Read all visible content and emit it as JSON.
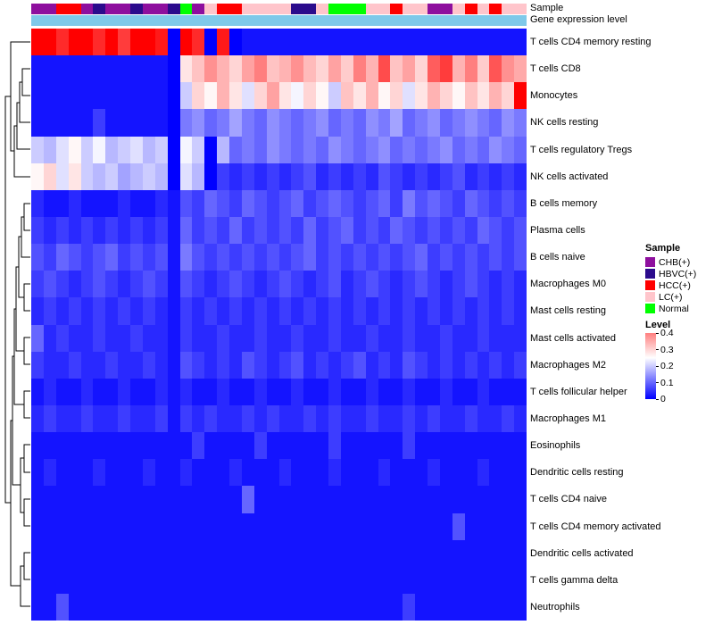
{
  "annotations": {
    "sample_label": "Sample",
    "gene_label": "Gene expression level",
    "gene_bar_color": "#7FC9E9"
  },
  "legend": {
    "sample": {
      "title": "Sample",
      "entries": [
        {
          "label": "CHB(+)",
          "color": "#8E0F9E"
        },
        {
          "label": "HBVC(+)",
          "color": "#2B0B8C"
        },
        {
          "label": "HCC(+)",
          "color": "#FF0000"
        },
        {
          "label": "LC(+)",
          "color": "#FFC5CB"
        },
        {
          "label": "Normal",
          "color": "#00FF00"
        }
      ]
    },
    "level": {
      "title": "Level",
      "ticks": [
        "0.4",
        "0.3",
        "0.2",
        "0.1",
        "0"
      ],
      "tick_values": [
        0.4,
        0.3,
        0.2,
        0.1,
        0
      ]
    }
  },
  "chart_data": {
    "type": "heatmap",
    "title": "",
    "xlabel": "",
    "ylabel": "",
    "n_cols": 40,
    "color_scale": {
      "min": 0,
      "max": 0.4,
      "low": "#0000FF",
      "mid": "#FFFFFF",
      "high": "#FF0000",
      "mid_at": 0.25
    },
    "rows": [
      "T cells CD4 memory resting",
      "T cells CD8",
      "Monocytes",
      "NK cells resting",
      "T cells regulatory Tregs",
      "NK cells activated",
      "B cells memory",
      "Plasma cells",
      "B cells naive",
      "Macrophages M0",
      "Mast cells resting",
      "Mast cells activated",
      "Macrophages M2",
      "T cells follicular helper",
      "Macrophages M1",
      "Eosinophils",
      "Dendritic cells resting",
      "T cells CD4 naive",
      "T cells CD4 memory activated",
      "Dendritic cells activated",
      "T cells gamma delta",
      "Neutrophils"
    ],
    "col_annotations": {
      "sample": [
        "CHB(+)",
        "CHB(+)",
        "HCC(+)",
        "HCC(+)",
        "CHB(+)",
        "HBVC(+)",
        "CHB(+)",
        "CHB(+)",
        "HBVC(+)",
        "CHB(+)",
        "CHB(+)",
        "HBVC(+)",
        "Normal",
        "CHB(+)",
        "LC(+)",
        "HCC(+)",
        "HCC(+)",
        "LC(+)",
        "LC(+)",
        "LC(+)",
        "LC(+)",
        "HBVC(+)",
        "HBVC(+)",
        "LC(+)",
        "Normal",
        "Normal",
        "Normal",
        "LC(+)",
        "LC(+)",
        "HCC(+)",
        "LC(+)",
        "LC(+)",
        "CHB(+)",
        "CHB(+)",
        "LC(+)",
        "HCC(+)",
        "LC(+)",
        "HCC(+)",
        "LC(+)",
        "LC(+)"
      ]
    },
    "values": [
      [
        0.55,
        0.6,
        0.5,
        0.58,
        0.62,
        0.5,
        0.55,
        0.48,
        0.6,
        0.55,
        0.52,
        0,
        0.55,
        0.5,
        0,
        0.52,
        0,
        0.02,
        0.02,
        0.02,
        0.02,
        0.02,
        0.02,
        0.02,
        0.02,
        0.02,
        0.02,
        0.02,
        0.02,
        0.02,
        0.02,
        0.02,
        0.02,
        0.02,
        0.02,
        0.02,
        0.02,
        0.02,
        0.02,
        0.02
      ],
      [
        0.02,
        0.02,
        0.02,
        0.02,
        0.02,
        0.02,
        0.02,
        0.02,
        0.02,
        0.02,
        0.02,
        0,
        0.28,
        0.32,
        0.38,
        0.34,
        0.3,
        0.36,
        0.4,
        0.32,
        0.34,
        0.38,
        0.33,
        0.3,
        0.36,
        0.31,
        0.4,
        0.34,
        0.46,
        0.32,
        0.36,
        0.3,
        0.44,
        0.48,
        0.34,
        0.4,
        0.31,
        0.45,
        0.38,
        0.35
      ],
      [
        0.02,
        0.02,
        0.02,
        0.02,
        0.02,
        0.02,
        0.02,
        0.02,
        0.02,
        0.02,
        0.02,
        0,
        0.2,
        0.3,
        0.26,
        0.34,
        0.28,
        0.22,
        0.3,
        0.36,
        0.28,
        0.24,
        0.3,
        0.26,
        0.2,
        0.32,
        0.28,
        0.34,
        0.26,
        0.3,
        0.22,
        0.28,
        0.34,
        0.3,
        0.26,
        0.32,
        0.28,
        0.34,
        0.3,
        0.55
      ],
      [
        0.02,
        0.02,
        0.02,
        0.02,
        0.02,
        0.06,
        0.02,
        0.02,
        0.02,
        0.02,
        0.02,
        0,
        0.12,
        0.14,
        0.1,
        0.12,
        0.16,
        0.12,
        0.1,
        0.14,
        0.12,
        0.1,
        0.12,
        0.14,
        0.1,
        0.12,
        0.1,
        0.14,
        0.12,
        0.16,
        0.1,
        0.12,
        0.14,
        0.1,
        0.12,
        0.14,
        0.12,
        0.1,
        0.14,
        0.12
      ],
      [
        0.2,
        0.18,
        0.22,
        0.26,
        0.2,
        0.24,
        0.18,
        0.2,
        0.22,
        0.18,
        0.2,
        0,
        0.24,
        0.2,
        0,
        0.18,
        0.1,
        0.12,
        0.1,
        0.14,
        0.12,
        0.1,
        0.12,
        0.1,
        0.14,
        0.12,
        0.1,
        0.12,
        0.14,
        0.1,
        0.12,
        0.1,
        0.12,
        0.14,
        0.1,
        0.12,
        0.1,
        0.14,
        0.12,
        0.1
      ],
      [
        0.26,
        0.3,
        0.22,
        0.28,
        0.2,
        0.18,
        0.2,
        0.16,
        0.18,
        0.2,
        0.18,
        0,
        0.22,
        0.18,
        0,
        0.06,
        0.04,
        0.06,
        0.04,
        0.06,
        0.04,
        0.06,
        0.08,
        0.04,
        0.06,
        0.04,
        0.06,
        0.04,
        0.08,
        0.06,
        0.04,
        0.06,
        0.04,
        0.06,
        0.08,
        0.04,
        0.06,
        0.04,
        0.06,
        0.04
      ],
      [
        0.04,
        0.02,
        0.02,
        0.04,
        0.02,
        0.02,
        0.02,
        0.04,
        0.02,
        0.02,
        0.04,
        0.02,
        0.08,
        0.06,
        0.1,
        0.08,
        0.06,
        0.1,
        0.08,
        0.06,
        0.08,
        0.1,
        0.06,
        0.08,
        0.1,
        0.08,
        0.06,
        0.08,
        0.1,
        0.06,
        0.12,
        0.08,
        0.1,
        0.08,
        0.06,
        0.1,
        0.08,
        0.06,
        0.08,
        0.06
      ],
      [
        0.06,
        0.04,
        0.06,
        0.04,
        0.06,
        0.04,
        0.06,
        0.04,
        0.06,
        0.04,
        0.06,
        0.02,
        0.1,
        0.06,
        0.08,
        0.06,
        0.1,
        0.06,
        0.08,
        0.06,
        0.08,
        0.06,
        0.1,
        0.06,
        0.08,
        0.1,
        0.06,
        0.08,
        0.06,
        0.1,
        0.08,
        0.06,
        0.08,
        0.06,
        0.08,
        0.06,
        0.1,
        0.08,
        0.06,
        0.08
      ],
      [
        0.08,
        0.06,
        0.1,
        0.08,
        0.06,
        0.08,
        0.1,
        0.06,
        0.08,
        0.06,
        0.08,
        0.02,
        0.12,
        0.08,
        0.06,
        0.08,
        0.06,
        0.08,
        0.06,
        0.08,
        0.06,
        0.08,
        0.1,
        0.06,
        0.08,
        0.06,
        0.08,
        0.06,
        0.08,
        0.06,
        0.08,
        0.1,
        0.06,
        0.08,
        0.06,
        0.08,
        0.06,
        0.08,
        0.06,
        0.08
      ],
      [
        0.06,
        0.08,
        0.06,
        0.04,
        0.06,
        0.08,
        0.06,
        0.04,
        0.06,
        0.08,
        0.06,
        0.02,
        0.08,
        0.06,
        0.04,
        0.06,
        0.08,
        0.06,
        0.04,
        0.06,
        0.08,
        0.06,
        0.04,
        0.06,
        0.08,
        0.04,
        0.06,
        0.08,
        0.06,
        0.04,
        0.06,
        0.08,
        0.06,
        0.04,
        0.06,
        0.08,
        0.06,
        0.04,
        0.06,
        0.04
      ],
      [
        0.04,
        0.06,
        0.04,
        0.06,
        0.04,
        0.06,
        0.04,
        0.06,
        0.04,
        0.06,
        0.04,
        0.02,
        0.06,
        0.04,
        0.06,
        0.04,
        0.06,
        0.04,
        0.06,
        0.04,
        0.06,
        0.04,
        0.06,
        0.04,
        0.06,
        0.04,
        0.06,
        0.04,
        0.06,
        0.04,
        0.06,
        0.04,
        0.06,
        0.04,
        0.06,
        0.04,
        0.06,
        0.04,
        0.06,
        0.04
      ],
      [
        0.1,
        0.04,
        0.06,
        0.04,
        0.04,
        0.06,
        0.04,
        0.04,
        0.06,
        0.04,
        0.04,
        0.02,
        0.06,
        0.04,
        0.04,
        0.06,
        0.04,
        0.04,
        0.06,
        0.04,
        0.04,
        0.06,
        0.04,
        0.04,
        0.06,
        0.04,
        0.04,
        0.06,
        0.04,
        0.04,
        0.06,
        0.04,
        0.04,
        0.06,
        0.04,
        0.04,
        0.06,
        0.04,
        0.04,
        0.04
      ],
      [
        0.06,
        0.04,
        0.04,
        0.06,
        0.04,
        0.04,
        0.06,
        0.04,
        0.04,
        0.06,
        0.04,
        0.02,
        0.08,
        0.06,
        0.04,
        0.06,
        0.04,
        0.08,
        0.06,
        0.04,
        0.06,
        0.08,
        0.04,
        0.06,
        0.04,
        0.06,
        0.08,
        0.04,
        0.06,
        0.04,
        0.08,
        0.06,
        0.04,
        0.06,
        0.04,
        0.06,
        0.04,
        0.06,
        0.04,
        0.06
      ],
      [
        0.02,
        0.04,
        0.02,
        0.02,
        0.04,
        0.02,
        0.02,
        0.04,
        0.02,
        0.02,
        0.04,
        0.02,
        0.04,
        0.02,
        0.02,
        0.04,
        0.02,
        0.02,
        0.04,
        0.02,
        0.02,
        0.04,
        0.02,
        0.02,
        0.04,
        0.02,
        0.02,
        0.04,
        0.02,
        0.02,
        0.04,
        0.02,
        0.02,
        0.04,
        0.02,
        0.02,
        0.04,
        0.02,
        0.02,
        0.02
      ],
      [
        0.04,
        0.06,
        0.04,
        0.04,
        0.06,
        0.04,
        0.04,
        0.06,
        0.04,
        0.04,
        0.06,
        0.02,
        0.06,
        0.04,
        0.06,
        0.04,
        0.04,
        0.06,
        0.04,
        0.06,
        0.04,
        0.04,
        0.06,
        0.04,
        0.06,
        0.04,
        0.04,
        0.06,
        0.04,
        0.04,
        0.06,
        0.04,
        0.06,
        0.04,
        0.04,
        0.06,
        0.04,
        0.04,
        0.06,
        0.04
      ],
      [
        0.02,
        0.02,
        0.02,
        0.02,
        0.02,
        0.02,
        0.02,
        0.02,
        0.02,
        0.02,
        0.02,
        0.02,
        0.02,
        0.06,
        0.02,
        0.02,
        0.02,
        0.02,
        0.06,
        0.02,
        0.02,
        0.02,
        0.02,
        0.02,
        0.06,
        0.02,
        0.02,
        0.02,
        0.02,
        0.02,
        0.06,
        0.02,
        0.02,
        0.02,
        0.02,
        0.02,
        0.02,
        0.02,
        0.02,
        0.02
      ],
      [
        0.02,
        0.04,
        0.02,
        0.02,
        0.02,
        0.04,
        0.02,
        0.02,
        0.02,
        0.04,
        0.02,
        0.02,
        0.04,
        0.02,
        0.02,
        0.02,
        0.04,
        0.02,
        0.02,
        0.02,
        0.04,
        0.02,
        0.02,
        0.02,
        0.04,
        0.02,
        0.02,
        0.02,
        0.04,
        0.02,
        0.02,
        0.02,
        0.04,
        0.02,
        0.02,
        0.02,
        0.04,
        0.02,
        0.02,
        0.02
      ],
      [
        0.02,
        0.02,
        0.02,
        0.02,
        0.02,
        0.02,
        0.02,
        0.02,
        0.02,
        0.02,
        0.02,
        0.02,
        0.02,
        0.02,
        0.02,
        0.02,
        0.02,
        0.1,
        0.02,
        0.02,
        0.02,
        0.02,
        0.02,
        0.02,
        0.02,
        0.02,
        0.02,
        0.02,
        0.02,
        0.02,
        0.02,
        0.02,
        0.02,
        0.02,
        0.02,
        0.02,
        0.02,
        0.02,
        0.02,
        0.02
      ],
      [
        0.02,
        0.02,
        0.02,
        0.02,
        0.02,
        0.02,
        0.02,
        0.02,
        0.02,
        0.02,
        0.02,
        0.02,
        0.02,
        0.02,
        0.02,
        0.02,
        0.02,
        0.02,
        0.02,
        0.02,
        0.02,
        0.02,
        0.02,
        0.02,
        0.02,
        0.02,
        0.02,
        0.02,
        0.02,
        0.02,
        0.02,
        0.02,
        0.02,
        0.02,
        0.08,
        0.02,
        0.02,
        0.02,
        0.02,
        0.02
      ],
      [
        0.02,
        0.02,
        0.02,
        0.02,
        0.02,
        0.02,
        0.02,
        0.02,
        0.02,
        0.02,
        0.02,
        0.02,
        0.02,
        0.02,
        0.02,
        0.02,
        0.02,
        0.02,
        0.02,
        0.02,
        0.02,
        0.02,
        0.02,
        0.02,
        0.02,
        0.02,
        0.02,
        0.02,
        0.02,
        0.02,
        0.02,
        0.02,
        0.02,
        0.02,
        0.02,
        0.02,
        0.02,
        0.02,
        0.02,
        0.02
      ],
      [
        0.02,
        0.02,
        0.02,
        0.02,
        0.02,
        0.02,
        0.02,
        0.02,
        0.02,
        0.02,
        0.02,
        0.02,
        0.02,
        0.02,
        0.02,
        0.02,
        0.02,
        0.02,
        0.02,
        0.02,
        0.02,
        0.02,
        0.02,
        0.02,
        0.02,
        0.02,
        0.02,
        0.02,
        0.02,
        0.02,
        0.02,
        0.02,
        0.02,
        0.02,
        0.02,
        0.02,
        0.02,
        0.02,
        0.02,
        0.02
      ],
      [
        0.02,
        0.02,
        0.08,
        0.02,
        0.02,
        0.02,
        0.02,
        0.02,
        0.02,
        0.02,
        0.02,
        0.02,
        0.02,
        0.02,
        0.02,
        0.02,
        0.02,
        0.02,
        0.02,
        0.02,
        0.02,
        0.02,
        0.02,
        0.02,
        0.02,
        0.02,
        0.02,
        0.02,
        0.02,
        0.02,
        0.06,
        0.02,
        0.02,
        0.02,
        0.02,
        0.02,
        0.02,
        0.02,
        0.02,
        0.02
      ]
    ]
  }
}
